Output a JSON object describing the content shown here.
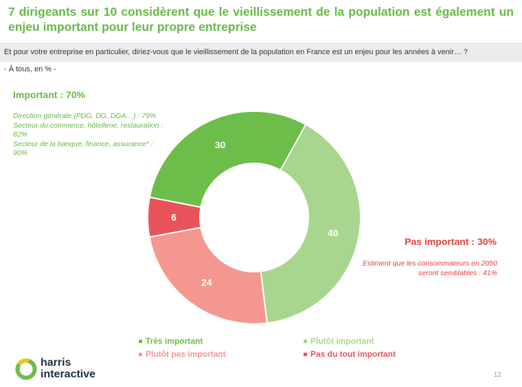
{
  "header": {
    "title": "7 dirigeants sur 10 considèrent que le vieillissement de la population est également un enjeu important pour leur propre entreprise",
    "question": "Et pour votre entreprise en particulier, diriez-vous que le vieillissement de la population en France est un enjeu pour les années à venir… ?",
    "base": "- À tous, en % -"
  },
  "annotations": {
    "important": {
      "title": "Important : 70%",
      "details": [
        "Direction générale (PDG, DG, DGA…) : 79%",
        "Secteur du commerce, hôtellerie, restauration : 82%",
        "Secteur de la banque, finance, assurance* : 90%"
      ]
    },
    "not_important": {
      "title": "Pas important : 30%",
      "details": [
        "Estiment que les consommateurs en 2050 seront semblables : 41%"
      ]
    }
  },
  "chart_data": {
    "type": "pie",
    "donut": true,
    "start_angle_deg": -61,
    "direction": "clockwise",
    "slices": [
      {
        "name": "Plutôt important",
        "value": 40,
        "color": "#a8d68e"
      },
      {
        "name": "Plutôt pas important",
        "value": 24,
        "color": "#f4978e"
      },
      {
        "name": "Pas du tout important",
        "value": 6,
        "color": "#e8535a"
      },
      {
        "name": "Très important",
        "value": 30,
        "color": "#6cbd4a"
      }
    ],
    "legend": [
      {
        "name": "Très important",
        "color": "#6cbd4a"
      },
      {
        "name": "Plutôt important",
        "color": "#a8d68e"
      },
      {
        "name": "Plutôt pas important",
        "color": "#f4978e"
      },
      {
        "name": "Pas du tout important",
        "color": "#e8535a"
      }
    ],
    "legend_placement": "bottom"
  },
  "brand": {
    "line1": "harris",
    "line2": "interactive",
    "colors": {
      "green": "#6cbd4a",
      "yellow": "#e8c420",
      "navy": "#1e2e3d"
    }
  },
  "footer": {
    "page_number": "12"
  }
}
